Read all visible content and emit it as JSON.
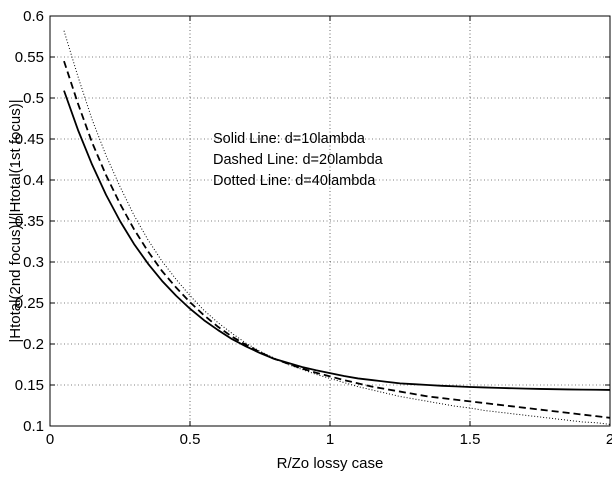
{
  "chart_data": {
    "type": "line",
    "title": "",
    "xlabel": "R/Zo lossy case",
    "ylabel": "|Htotal(2nd focus)|/|Htotal(1st focus)|",
    "xlim": [
      0,
      2
    ],
    "ylim": [
      0.1,
      0.6
    ],
    "xticks": [
      0,
      0.5,
      1,
      1.5,
      2
    ],
    "xtick_labels": [
      "0",
      "0.5",
      "1",
      "1.5",
      "2"
    ],
    "yticks": [
      0.1,
      0.15,
      0.2,
      0.25,
      0.3,
      0.35,
      0.4,
      0.45,
      0.5,
      0.55,
      0.6
    ],
    "ytick_labels": [
      "0.1",
      "0.15",
      "0.2",
      "0.25",
      "0.3",
      "0.35",
      "0.4",
      "0.45",
      "0.5",
      "0.55",
      "0.6"
    ],
    "grid": true,
    "grid_style": "dotted",
    "annotations": [
      "Solid Line: d=10lambda",
      "Dashed Line: d=20lambda",
      "Dotted Line: d=40lambda"
    ],
    "series": [
      {
        "line_style": "solid",
        "color": "#000000",
        "x": [
          0.05,
          0.1,
          0.15,
          0.2,
          0.25,
          0.3,
          0.35,
          0.4,
          0.45,
          0.5,
          0.55,
          0.6,
          0.65,
          0.7,
          0.75,
          0.8,
          0.85,
          0.9,
          0.95,
          1.0,
          1.05,
          1.1,
          1.15,
          1.2,
          1.25,
          1.3,
          1.35,
          1.4,
          1.45,
          1.5,
          1.55,
          1.6,
          1.65,
          1.7,
          1.75,
          1.8,
          1.85,
          1.9,
          1.95,
          2.0
        ],
        "y": [
          0.509,
          0.461,
          0.419,
          0.382,
          0.35,
          0.322,
          0.298,
          0.277,
          0.259,
          0.243,
          0.229,
          0.217,
          0.206,
          0.197,
          0.189,
          0.182,
          0.177,
          0.172,
          0.168,
          0.1645,
          0.161,
          0.158,
          0.156,
          0.154,
          0.152,
          0.151,
          0.15,
          0.149,
          0.1483,
          0.1476,
          0.147,
          0.1465,
          0.146,
          0.1456,
          0.1452,
          0.1449,
          0.1446,
          0.1444,
          0.1442,
          0.144
        ]
      },
      {
        "line_style": "dashed",
        "color": "#000000",
        "x": [
          0.05,
          0.1,
          0.15,
          0.2,
          0.25,
          0.3,
          0.35,
          0.4,
          0.45,
          0.5,
          0.55,
          0.6,
          0.65,
          0.7,
          0.75,
          0.8,
          0.85,
          0.9,
          0.95,
          1.0,
          1.05,
          1.1,
          1.15,
          1.2,
          1.25,
          1.3,
          1.35,
          1.4,
          1.45,
          1.5,
          1.55,
          1.6,
          1.65,
          1.7,
          1.75,
          1.8,
          1.85,
          1.9,
          1.95,
          2.0
        ],
        "y": [
          0.545,
          0.493,
          0.446,
          0.406,
          0.371,
          0.34,
          0.313,
          0.289,
          0.269,
          0.251,
          0.235,
          0.221,
          0.209,
          0.199,
          0.19,
          0.182,
          0.176,
          0.17,
          0.165,
          0.1605,
          0.156,
          0.152,
          0.148,
          0.145,
          0.142,
          0.139,
          0.136,
          0.134,
          0.132,
          0.13,
          0.128,
          0.126,
          0.124,
          0.122,
          0.12,
          0.118,
          0.116,
          0.114,
          0.112,
          0.11
        ]
      },
      {
        "line_style": "dotted",
        "color": "#000000",
        "x": [
          0.05,
          0.1,
          0.15,
          0.2,
          0.25,
          0.3,
          0.35,
          0.4,
          0.45,
          0.5,
          0.55,
          0.6,
          0.65,
          0.7,
          0.75,
          0.8,
          0.85,
          0.9,
          0.95,
          1.0,
          1.05,
          1.1,
          1.15,
          1.2,
          1.25,
          1.3,
          1.35,
          1.4,
          1.45,
          1.5,
          1.55,
          1.6,
          1.65,
          1.7,
          1.75,
          1.8,
          1.85,
          1.9,
          1.95,
          2.0
        ],
        "y": [
          0.582,
          0.526,
          0.474,
          0.43,
          0.392,
          0.357,
          0.327,
          0.301,
          0.279,
          0.259,
          0.241,
          0.226,
          0.213,
          0.201,
          0.191,
          0.183,
          0.175,
          0.169,
          0.163,
          0.158,
          0.153,
          0.148,
          0.144,
          0.14,
          0.136,
          0.133,
          0.13,
          0.127,
          0.124,
          0.122,
          0.119,
          0.117,
          0.115,
          0.113,
          0.111,
          0.109,
          0.107,
          0.105,
          0.104,
          0.102
        ]
      }
    ]
  }
}
